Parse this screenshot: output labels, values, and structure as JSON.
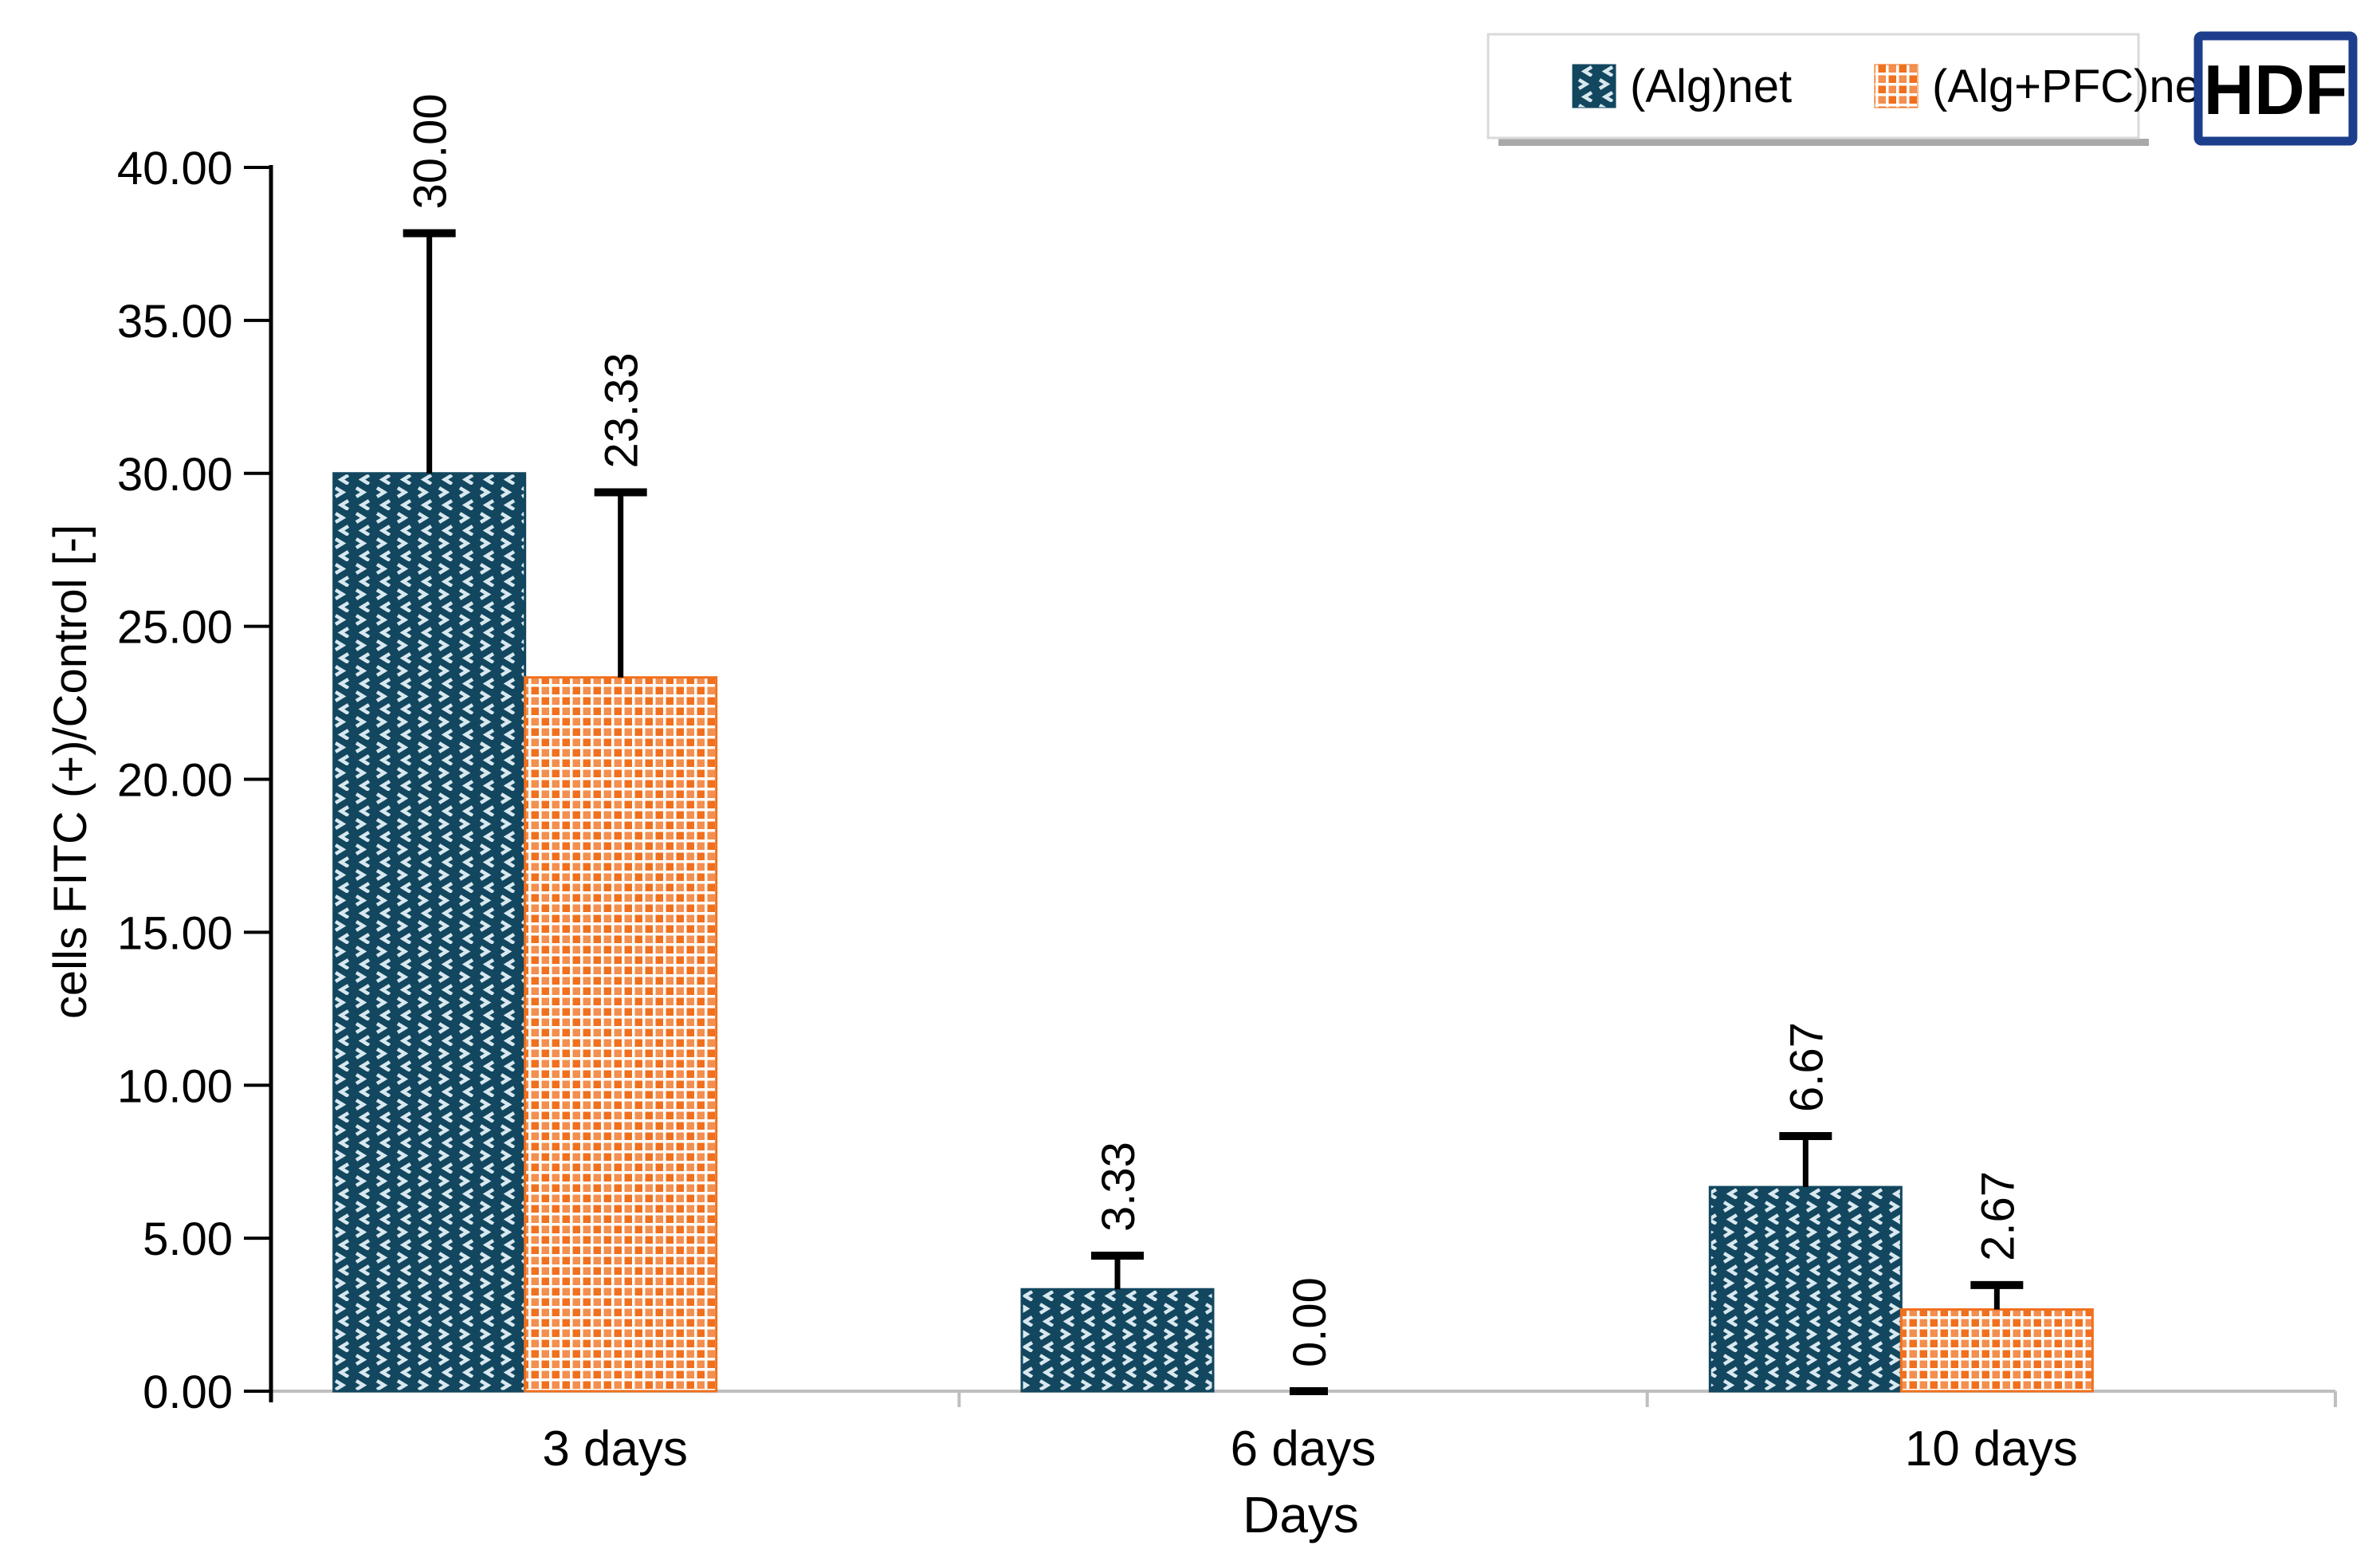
{
  "hdf_badge": "HDF",
  "colors": {
    "background": "#FFFFFF",
    "y_axis": "#000000",
    "x_axis": "#BFBFBF",
    "text": "#000000",
    "error_bar": "#000000",
    "legend_border": "#D9D9D9",
    "legend_shadow": "#A9A9A9",
    "hdf_border": "#1C3E8C"
  },
  "chart_data": {
    "type": "bar",
    "title": "",
    "xlabel": "Days",
    "ylabel": "cells FITC (+)/Control [-]",
    "categories": [
      "3 days",
      "6 days",
      "10 days"
    ],
    "series": [
      {
        "name": "(Alg)net",
        "values": [
          30.0,
          3.33,
          6.67
        ],
        "data_labels": [
          "30.00",
          "3.33",
          "6.67"
        ],
        "error_upper": [
          7.85,
          1.1,
          1.67
        ],
        "color": "#12475F",
        "pattern": "chevron",
        "pattern_fg": "#D9E8EF"
      },
      {
        "name": "(Alg+PFC)net",
        "values": [
          23.33,
          0.0,
          2.67
        ],
        "data_labels": [
          "23.33",
          "0.00",
          "2.67"
        ],
        "error_upper": [
          6.05,
          0,
          0.8
        ],
        "color": "#F0701E",
        "pattern": "grid",
        "pattern_fg": "#FFFFFF"
      }
    ],
    "ylim": [
      0,
      40
    ],
    "ytick_step": 5,
    "ytick_labels": [
      "0.00",
      "5.00",
      "10.00",
      "15.00",
      "20.00",
      "25.00",
      "30.00",
      "35.00",
      "40.00"
    ],
    "grid": false,
    "legend_position": "top-right",
    "data_label_rotation": -90
  }
}
